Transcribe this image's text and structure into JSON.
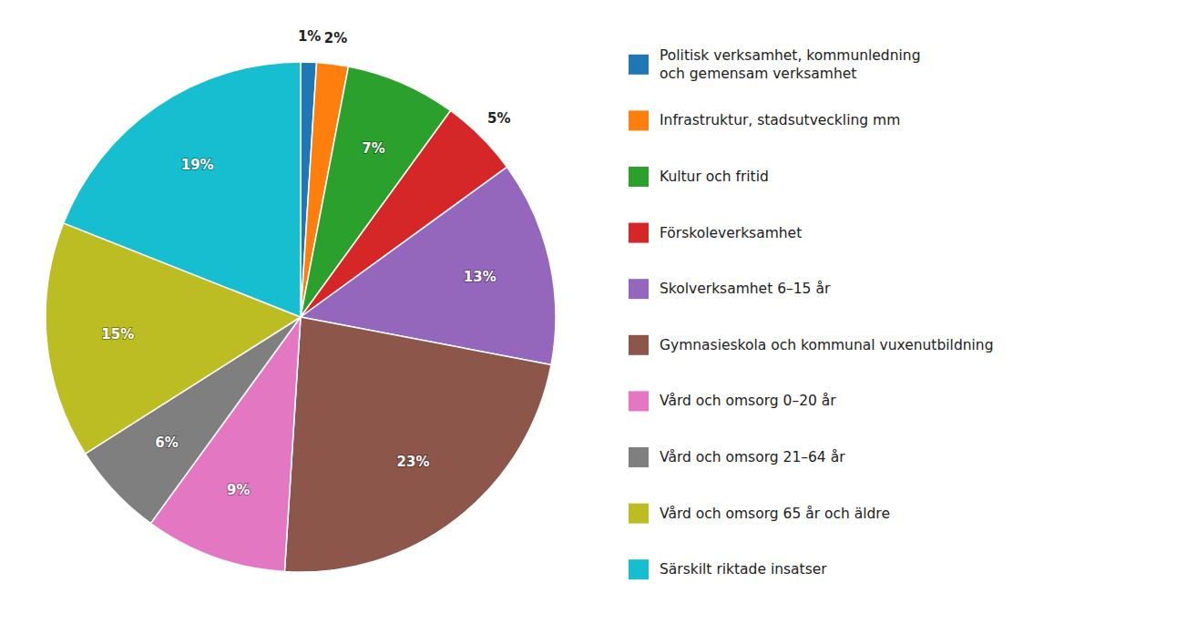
{
  "chart_data": {
    "type": "pie",
    "categories": [
      "Politisk verksamhet, kommunledning\noch gemensam verksamhet",
      "Infrastruktur, stadsutveckling mm",
      "Kultur och fritid",
      "Förskoleverksamhet",
      "Skolverksamhet 6–15 år",
      "Gymnasieskola och kommunal vuxenutbildning",
      "Vård och omsorg 0–20 år",
      "Vård och omsorg 21–64 år",
      "Vård och omsorg 65 år och äldre",
      "Särskilt riktade insatser"
    ],
    "values": [
      1,
      2,
      7,
      5,
      13,
      23,
      9,
      6,
      15,
      19
    ],
    "value_labels": [
      "1%",
      "2%",
      "7%",
      "5%",
      "13%",
      "23%",
      "9%",
      "6%",
      "15%",
      "19%"
    ],
    "legend": "right"
  }
}
